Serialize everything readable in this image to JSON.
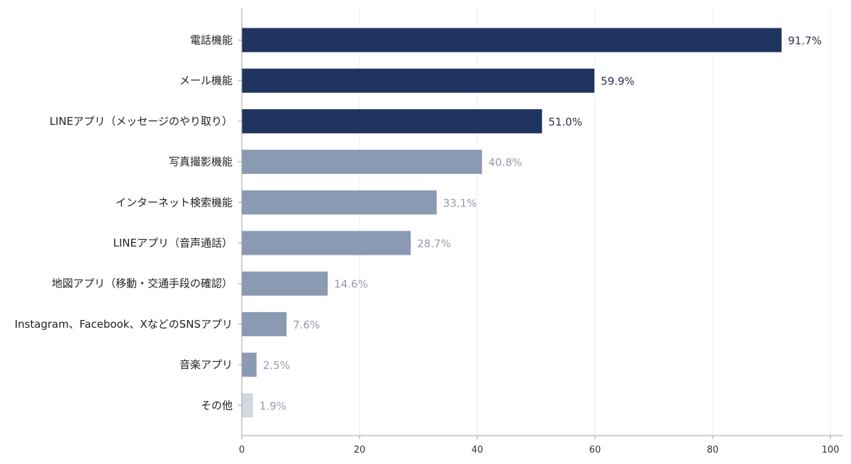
{
  "chart_data": {
    "type": "bar",
    "orientation": "horizontal",
    "title": "",
    "xlabel": "",
    "ylabel": "",
    "xlim": [
      0,
      100
    ],
    "xticks": [
      0,
      20,
      40,
      60,
      80,
      100
    ],
    "grid": "vertical",
    "categories": [
      "電話機能",
      "メール機能",
      "LINEアプリ（メッセージのやり取り）",
      "写真撮影機能",
      "インターネット検索機能",
      "LINEアプリ（音声通話）",
      "地図アプリ（移動・交通手段の確認）",
      "Instagram、Facebook、XなどのSNSアプリ",
      "音楽アプリ",
      "その他"
    ],
    "values": [
      91.7,
      59.9,
      51.0,
      40.8,
      33.1,
      28.7,
      14.6,
      7.6,
      2.5,
      1.9
    ],
    "value_labels": [
      "91.7%",
      "59.9%",
      "51.0%",
      "40.8%",
      "33.1%",
      "28.7%",
      "14.6%",
      "7.6%",
      "2.5%",
      "1.9%"
    ],
    "bar_colors": [
      "#1f3461",
      "#1f3461",
      "#1f3461",
      "#8a9ab3",
      "#8a9ab3",
      "#8a9ab3",
      "#8a9ab3",
      "#8a9ab3",
      "#8a9ab3",
      "#d2d7e0"
    ],
    "label_colors": [
      "#2b2f4f",
      "#2b2f4f",
      "#2b2f4f",
      "#9a97b0",
      "#9a97b0",
      "#9a97b0",
      "#9a97b0",
      "#9a97b0",
      "#9a97b0",
      "#9a97b0"
    ]
  }
}
